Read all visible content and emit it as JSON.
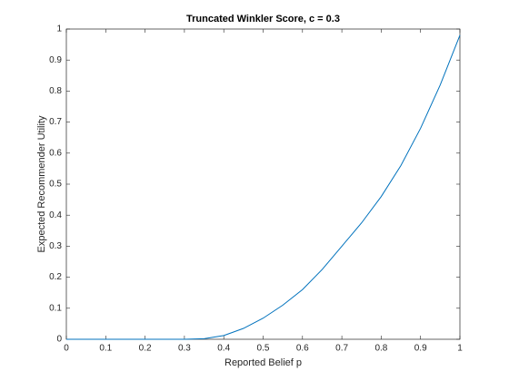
{
  "chart_data": {
    "type": "line",
    "title": "Truncated Winkler Score, c = 0.3",
    "xlabel": "Reported Belief p",
    "ylabel": "Expected Recommender Utility",
    "x": [
      0,
      0.05,
      0.1,
      0.15,
      0.2,
      0.25,
      0.3,
      0.35,
      0.4,
      0.45,
      0.5,
      0.55,
      0.6,
      0.65,
      0.7,
      0.75,
      0.8,
      0.85,
      0.9,
      0.95,
      1
    ],
    "series": [
      {
        "color": "#0072bd",
        "values": [
          0,
          0,
          0,
          0,
          0,
          0,
          0,
          0.002,
          0.012,
          0.035,
          0.068,
          0.11,
          0.16,
          0.225,
          0.3,
          0.375,
          0.46,
          0.56,
          0.68,
          0.82,
          0.98
        ]
      }
    ],
    "xlim": [
      0,
      1
    ],
    "ylim": [
      0,
      1
    ],
    "xticks": [
      0,
      0.1,
      0.2,
      0.3,
      0.4,
      0.5,
      0.6,
      0.7,
      0.8,
      0.9,
      1
    ],
    "yticks": [
      0,
      0.1,
      0.2,
      0.3,
      0.4,
      0.5,
      0.6,
      0.7,
      0.8,
      0.9,
      1
    ],
    "grid": false
  }
}
